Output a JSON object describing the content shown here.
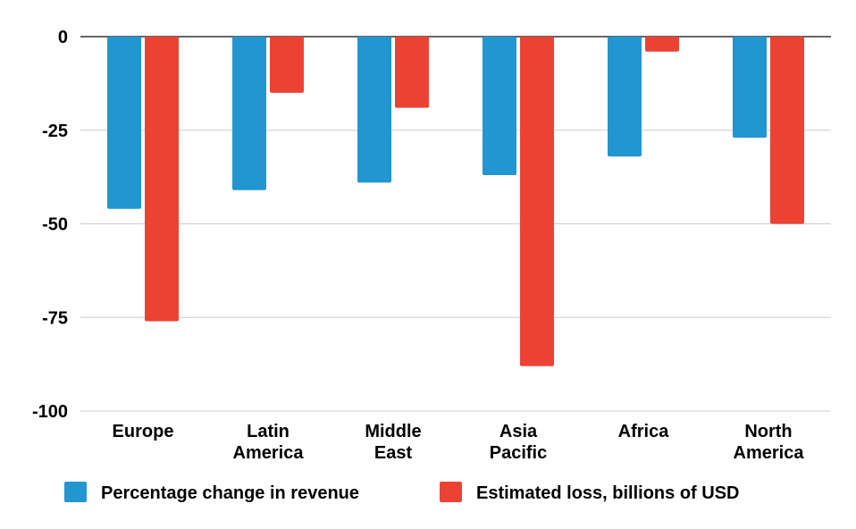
{
  "chart_data": {
    "type": "bar",
    "title": "",
    "xlabel": "",
    "ylabel": "",
    "ylim": [
      -100,
      0
    ],
    "yticks": [
      0,
      -25,
      -50,
      -75,
      -100
    ],
    "grid": true,
    "legend_position": "bottom",
    "categories": [
      [
        "Europe"
      ],
      [
        "Latin",
        "America"
      ],
      [
        "Middle",
        "East"
      ],
      [
        "Asia",
        "Pacific"
      ],
      [
        "Africa"
      ],
      [
        "North",
        "America"
      ]
    ],
    "series": [
      {
        "name": "Percentage change in revenue",
        "color": "#2196d0",
        "values": [
          -46,
          -41,
          -39,
          -37,
          -32,
          -27
        ]
      },
      {
        "name": "Estimated loss, billions of USD",
        "color": "#ec4234",
        "values": [
          -76,
          -15,
          -19,
          -88,
          -4,
          -50
        ]
      }
    ]
  }
}
